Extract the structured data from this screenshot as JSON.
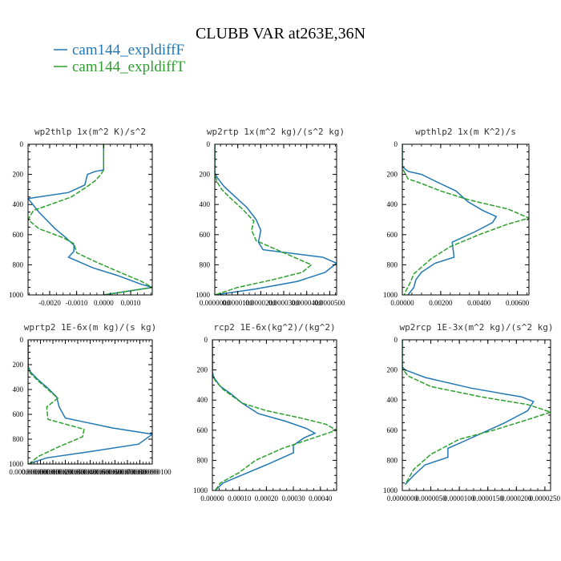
{
  "figure": {
    "title": "CLUBB VAR at263E,36N"
  },
  "legend": [
    {
      "label": "cam144_expldiffF",
      "color": "#1f77b4"
    },
    {
      "label": "cam144_expldiffT",
      "color": "#2ca02c"
    }
  ],
  "chart_data": [
    {
      "type": "line",
      "title": "wp2thlp  1x(m^2 K)/s^2",
      "xlim": [
        -0.0028,
        0.0018
      ],
      "ylim": [
        1000,
        0
      ],
      "xticks": [
        -0.002,
        -0.001,
        0.0,
        0.001
      ],
      "xticklabels": [
        "-0.0020",
        "-0.0010",
        "0.0000",
        "0.0010"
      ],
      "yticks": [
        0,
        200,
        400,
        600,
        800,
        1000
      ],
      "yticklabels": [
        "0",
        "200",
        "400",
        "600",
        "800",
        "1000"
      ],
      "series": [
        {
          "name": "cam144_expldiffF",
          "color": "#1f77b4",
          "dashed": false,
          "x": [
            0,
            0,
            -0.0003,
            -0.0006,
            -0.0007,
            -0.0013,
            -0.0028,
            -0.0024,
            -0.0018,
            -0.0014,
            -0.0011,
            -0.0011,
            -0.0013,
            -0.0004,
            0.0005,
            0.0014,
            0.0018,
            0.0
          ],
          "y": [
            0,
            170,
            180,
            200,
            270,
            320,
            360,
            450,
            560,
            620,
            670,
            710,
            750,
            820,
            870,
            930,
            950,
            1000
          ]
        },
        {
          "name": "cam144_expldiffT",
          "color": "#2ca02c",
          "dashed": true,
          "x": [
            0,
            0,
            -0.0001,
            -0.0003,
            -0.0006,
            -0.0012,
            -0.0026,
            -0.0028,
            -0.0024,
            -0.0015,
            -0.0011,
            -0.001,
            -0.0003,
            0.0006,
            0.0014,
            0.0018,
            0.0
          ],
          "y": [
            0,
            170,
            200,
            240,
            280,
            350,
            440,
            500,
            560,
            620,
            660,
            720,
            780,
            850,
            910,
            950,
            1000
          ]
        }
      ]
    },
    {
      "type": "line",
      "title": "wp2rtp  1x(m^2 kg)/(s^2 kg)",
      "xlim": [
        0.0,
        5.3e-05
      ],
      "ylim": [
        1000,
        0
      ],
      "xticks": [
        0.0,
        1e-05,
        2e-05,
        3e-05,
        4e-05,
        5e-05
      ],
      "xticklabels": [
        "0.0000000",
        "0.0000100",
        "0.0000200",
        "0.0000300",
        "0.0000400",
        "0.0000500"
      ],
      "yticks": [
        0,
        200,
        400,
        600,
        800,
        1000
      ],
      "yticklabels": [
        "0",
        "200",
        "400",
        "600",
        "800",
        "1000"
      ],
      "series": [
        {
          "name": "cam144_expldiffF",
          "color": "#1f77b4",
          "dashed": false,
          "x": [
            0,
            0,
            1e-06,
            4e-06,
            9e-06,
            1.4e-05,
            1.8e-05,
            2e-05,
            1.9e-05,
            2.1e-05,
            4.7e-05,
            5.3e-05,
            4.8e-05,
            3.6e-05,
            1.8e-05,
            0.0
          ],
          "y": [
            0,
            190,
            220,
            280,
            350,
            420,
            500,
            570,
            650,
            700,
            750,
            790,
            850,
            910,
            960,
            1000
          ]
        },
        {
          "name": "cam144_expldiffT",
          "color": "#2ca02c",
          "dashed": true,
          "x": [
            0,
            0,
            1e-06,
            3e-06,
            7e-06,
            1.2e-05,
            1.7e-05,
            1.6e-05,
            1.8e-05,
            3.3e-05,
            4.2e-05,
            3.8e-05,
            2.5e-05,
            1e-05,
            0.0
          ],
          "y": [
            0,
            200,
            250,
            300,
            360,
            430,
            510,
            570,
            640,
            740,
            800,
            850,
            900,
            950,
            1000
          ]
        }
      ]
    },
    {
      "type": "line",
      "title": "wpthlp2  1x(m K^2)/s",
      "xlim": [
        0.0,
        0.0066
      ],
      "ylim": [
        1000,
        0
      ],
      "xticks": [
        0.0,
        0.002,
        0.004,
        0.006
      ],
      "xticklabels": [
        "0.00000",
        "0.00200",
        "0.00400",
        "0.00600"
      ],
      "yticks": [
        0,
        200,
        400,
        600,
        800,
        1000
      ],
      "yticklabels": [
        "0",
        "200",
        "400",
        "600",
        "800",
        "1000"
      ],
      "series": [
        {
          "name": "cam144_expldiffF",
          "color": "#1f77b4",
          "dashed": false,
          "x": [
            0,
            0,
            0.0003,
            0.001,
            0.0018,
            0.0028,
            0.0034,
            0.0042,
            0.0049,
            0.0047,
            0.0038,
            0.0026,
            0.0027,
            0.0017,
            0.001,
            0.0007,
            0.0006,
            0.0003
          ],
          "y": [
            0,
            150,
            180,
            200,
            250,
            310,
            380,
            440,
            480,
            520,
            580,
            650,
            750,
            790,
            850,
            900,
            950,
            1000
          ]
        },
        {
          "name": "cam144_expldiffT",
          "color": "#2ca02c",
          "dashed": true,
          "x": [
            0,
            0,
            0.0003,
            0.001,
            0.002,
            0.0035,
            0.0055,
            0.0066,
            0.0055,
            0.004,
            0.0025,
            0.0015,
            0.0006,
            0.0004,
            0.0002,
            0.0001
          ],
          "y": [
            0,
            160,
            230,
            260,
            310,
            370,
            430,
            490,
            530,
            600,
            680,
            760,
            860,
            920,
            970,
            1000
          ]
        }
      ]
    },
    {
      "type": "line",
      "title": "wprtp2  1E-6x(m kg)/(s kg)",
      "xlim": [
        0.0,
        1e-07
      ],
      "ylim": [
        1000,
        0
      ],
      "xticks": [
        0.0,
        1e-08,
        2e-08,
        3e-08,
        4e-08,
        5e-08,
        6e-08,
        7e-08,
        8e-08,
        9e-08,
        1e-07
      ],
      "xticklabels": [
        "0.000000000",
        "0.000000010",
        "0.000000020",
        "0.000000030",
        "0.000000040",
        "0.000000050",
        "0.000000060",
        "0.000000070",
        "0.000000080",
        "0.000000090",
        "0.000000100"
      ],
      "yticks": [
        0,
        200,
        400,
        600,
        800,
        1000
      ],
      "yticklabels": [
        "0",
        "200",
        "400",
        "600",
        "800",
        "1000"
      ],
      "series": [
        {
          "name": "cam144_expldiffF",
          "color": "#1f77b4",
          "dashed": false,
          "x": [
            0,
            0,
            2e-09,
            8e-09,
            1.6e-08,
            2.3e-08,
            2.5e-08,
            3e-08,
            6.8e-08,
            1e-07,
            8.9e-08,
            5e-08,
            1.5e-08,
            0.0
          ],
          "y": [
            0,
            210,
            260,
            320,
            390,
            460,
            540,
            630,
            710,
            760,
            840,
            900,
            950,
            1000
          ]
        },
        {
          "name": "cam144_expldiffT",
          "color": "#2ca02c",
          "dashed": true,
          "x": [
            0,
            0,
            2e-09,
            8e-09,
            1.6e-08,
            2.4e-08,
            1.5e-08,
            1.6e-08,
            4.5e-08,
            4.4e-08,
            2.5e-08,
            8e-09,
            1e-09
          ],
          "y": [
            0,
            220,
            270,
            330,
            400,
            470,
            540,
            640,
            720,
            780,
            860,
            940,
            1000
          ]
        }
      ]
    },
    {
      "type": "line",
      "title": "rcp2  1E-6x(kg^2)/(kg^2)",
      "xlim": [
        0.0,
        0.00046
      ],
      "ylim": [
        1000,
        0
      ],
      "xticks": [
        0.0,
        0.0001,
        0.0002,
        0.0003,
        0.0004
      ],
      "xticklabels": [
        "0.00000",
        "0.00010",
        "0.00020",
        "0.00030",
        "0.00040"
      ],
      "yticks": [
        0,
        200,
        400,
        600,
        800,
        1000
      ],
      "yticklabels": [
        "0",
        "200",
        "400",
        "600",
        "800",
        "1000"
      ],
      "series": [
        {
          "name": "cam144_expldiffF",
          "color": "#1f77b4",
          "dashed": false,
          "x": [
            0,
            0,
            5e-06,
            3e-05,
            7e-05,
            0.00011,
            0.00017,
            0.00027,
            0.00035,
            0.00038,
            0.00034,
            0.0003,
            0.0003,
            0.0002,
            0.00012,
            4e-05,
            1e-05
          ],
          "y": [
            0,
            210,
            250,
            310,
            360,
            420,
            490,
            540,
            590,
            620,
            650,
            700,
            750,
            830,
            890,
            950,
            1000
          ]
        },
        {
          "name": "cam144_expldiffT",
          "color": "#2ca02c",
          "dashed": true,
          "x": [
            0,
            0,
            1e-05,
            4e-05,
            0.00011,
            0.0002,
            0.00033,
            0.00042,
            0.00046,
            0.00036,
            0.00026,
            0.00016,
            0.0001,
            3e-05,
            1e-05
          ],
          "y": [
            0,
            230,
            270,
            330,
            420,
            470,
            520,
            560,
            600,
            660,
            720,
            800,
            880,
            950,
            1000
          ]
        }
      ]
    },
    {
      "type": "line",
      "title": "wp2rcp  1E-3x(m^2 kg)/(s^2 kg)",
      "xlim": [
        0.0,
        2.6e-05
      ],
      "ylim": [
        1000,
        0
      ],
      "xticks": [
        0.0,
        5e-06,
        1e-05,
        1.5e-05,
        2e-05,
        2.5e-05
      ],
      "xticklabels": [
        "0.0000000",
        "0.0000050",
        "0.0000100",
        "0.0000150",
        "0.0000200",
        "0.0000250"
      ],
      "yticks": [
        0,
        200,
        400,
        600,
        800,
        1000
      ],
      "yticklabels": [
        "0",
        "200",
        "400",
        "600",
        "800",
        "1000"
      ],
      "series": [
        {
          "name": "cam144_expldiffF",
          "color": "#1f77b4",
          "dashed": false,
          "x": [
            0,
            0,
            5e-07,
            4e-06,
            1.2e-05,
            2.1e-05,
            2.3e-05,
            2.2e-05,
            1.8e-05,
            1.1e-05,
            8e-06,
            8e-06,
            4e-06,
            2e-06,
            5e-07
          ],
          "y": [
            0,
            180,
            200,
            250,
            320,
            380,
            410,
            470,
            550,
            670,
            720,
            780,
            830,
            900,
            960
          ]
        },
        {
          "name": "cam144_expldiffT",
          "color": "#2ca02c",
          "dashed": true,
          "x": [
            0,
            0,
            1e-06,
            5e-06,
            1.4e-05,
            2.2e-05,
            2.6e-05,
            2.2e-05,
            1.6e-05,
            1e-05,
            5e-06,
            2e-06,
            5e-07
          ],
          "y": [
            0,
            190,
            240,
            310,
            380,
            430,
            480,
            530,
            600,
            660,
            760,
            860,
            960
          ]
        }
      ]
    }
  ]
}
